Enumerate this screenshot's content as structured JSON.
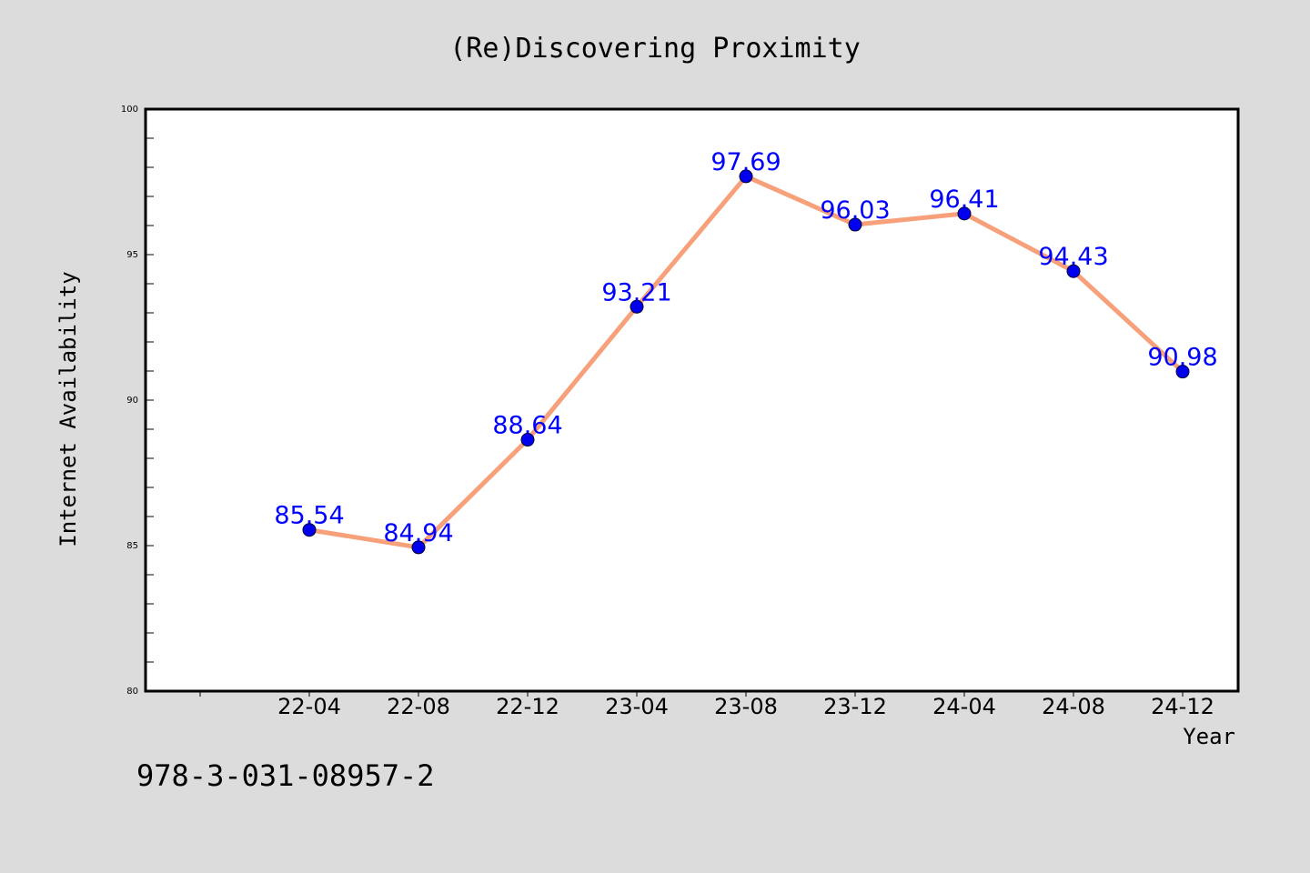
{
  "chart_data": {
    "type": "line",
    "title": "(Re)Discovering Proximity",
    "xlabel": "Year",
    "ylabel": "Internet Availability",
    "categories": [
      "22-04",
      "22-08",
      "22-12",
      "23-04",
      "23-08",
      "23-12",
      "24-04",
      "24-08",
      "24-12"
    ],
    "values": [
      85.54,
      84.94,
      88.64,
      93.21,
      97.69,
      96.03,
      96.41,
      94.43,
      90.98
    ],
    "data_labels": [
      "85.54",
      "84.94",
      "88.64",
      "93.21",
      "97.69",
      "96.03",
      "96.41",
      "94.43",
      "90.98"
    ],
    "ylim": [
      80,
      100
    ],
    "yticks": [
      80,
      85,
      90,
      95,
      100
    ],
    "grid": false,
    "colors": {
      "line": "#f7a07a",
      "marker": "#0000ee",
      "label": "#0000ff"
    }
  },
  "footer_text": "978-3-031-08957-2"
}
